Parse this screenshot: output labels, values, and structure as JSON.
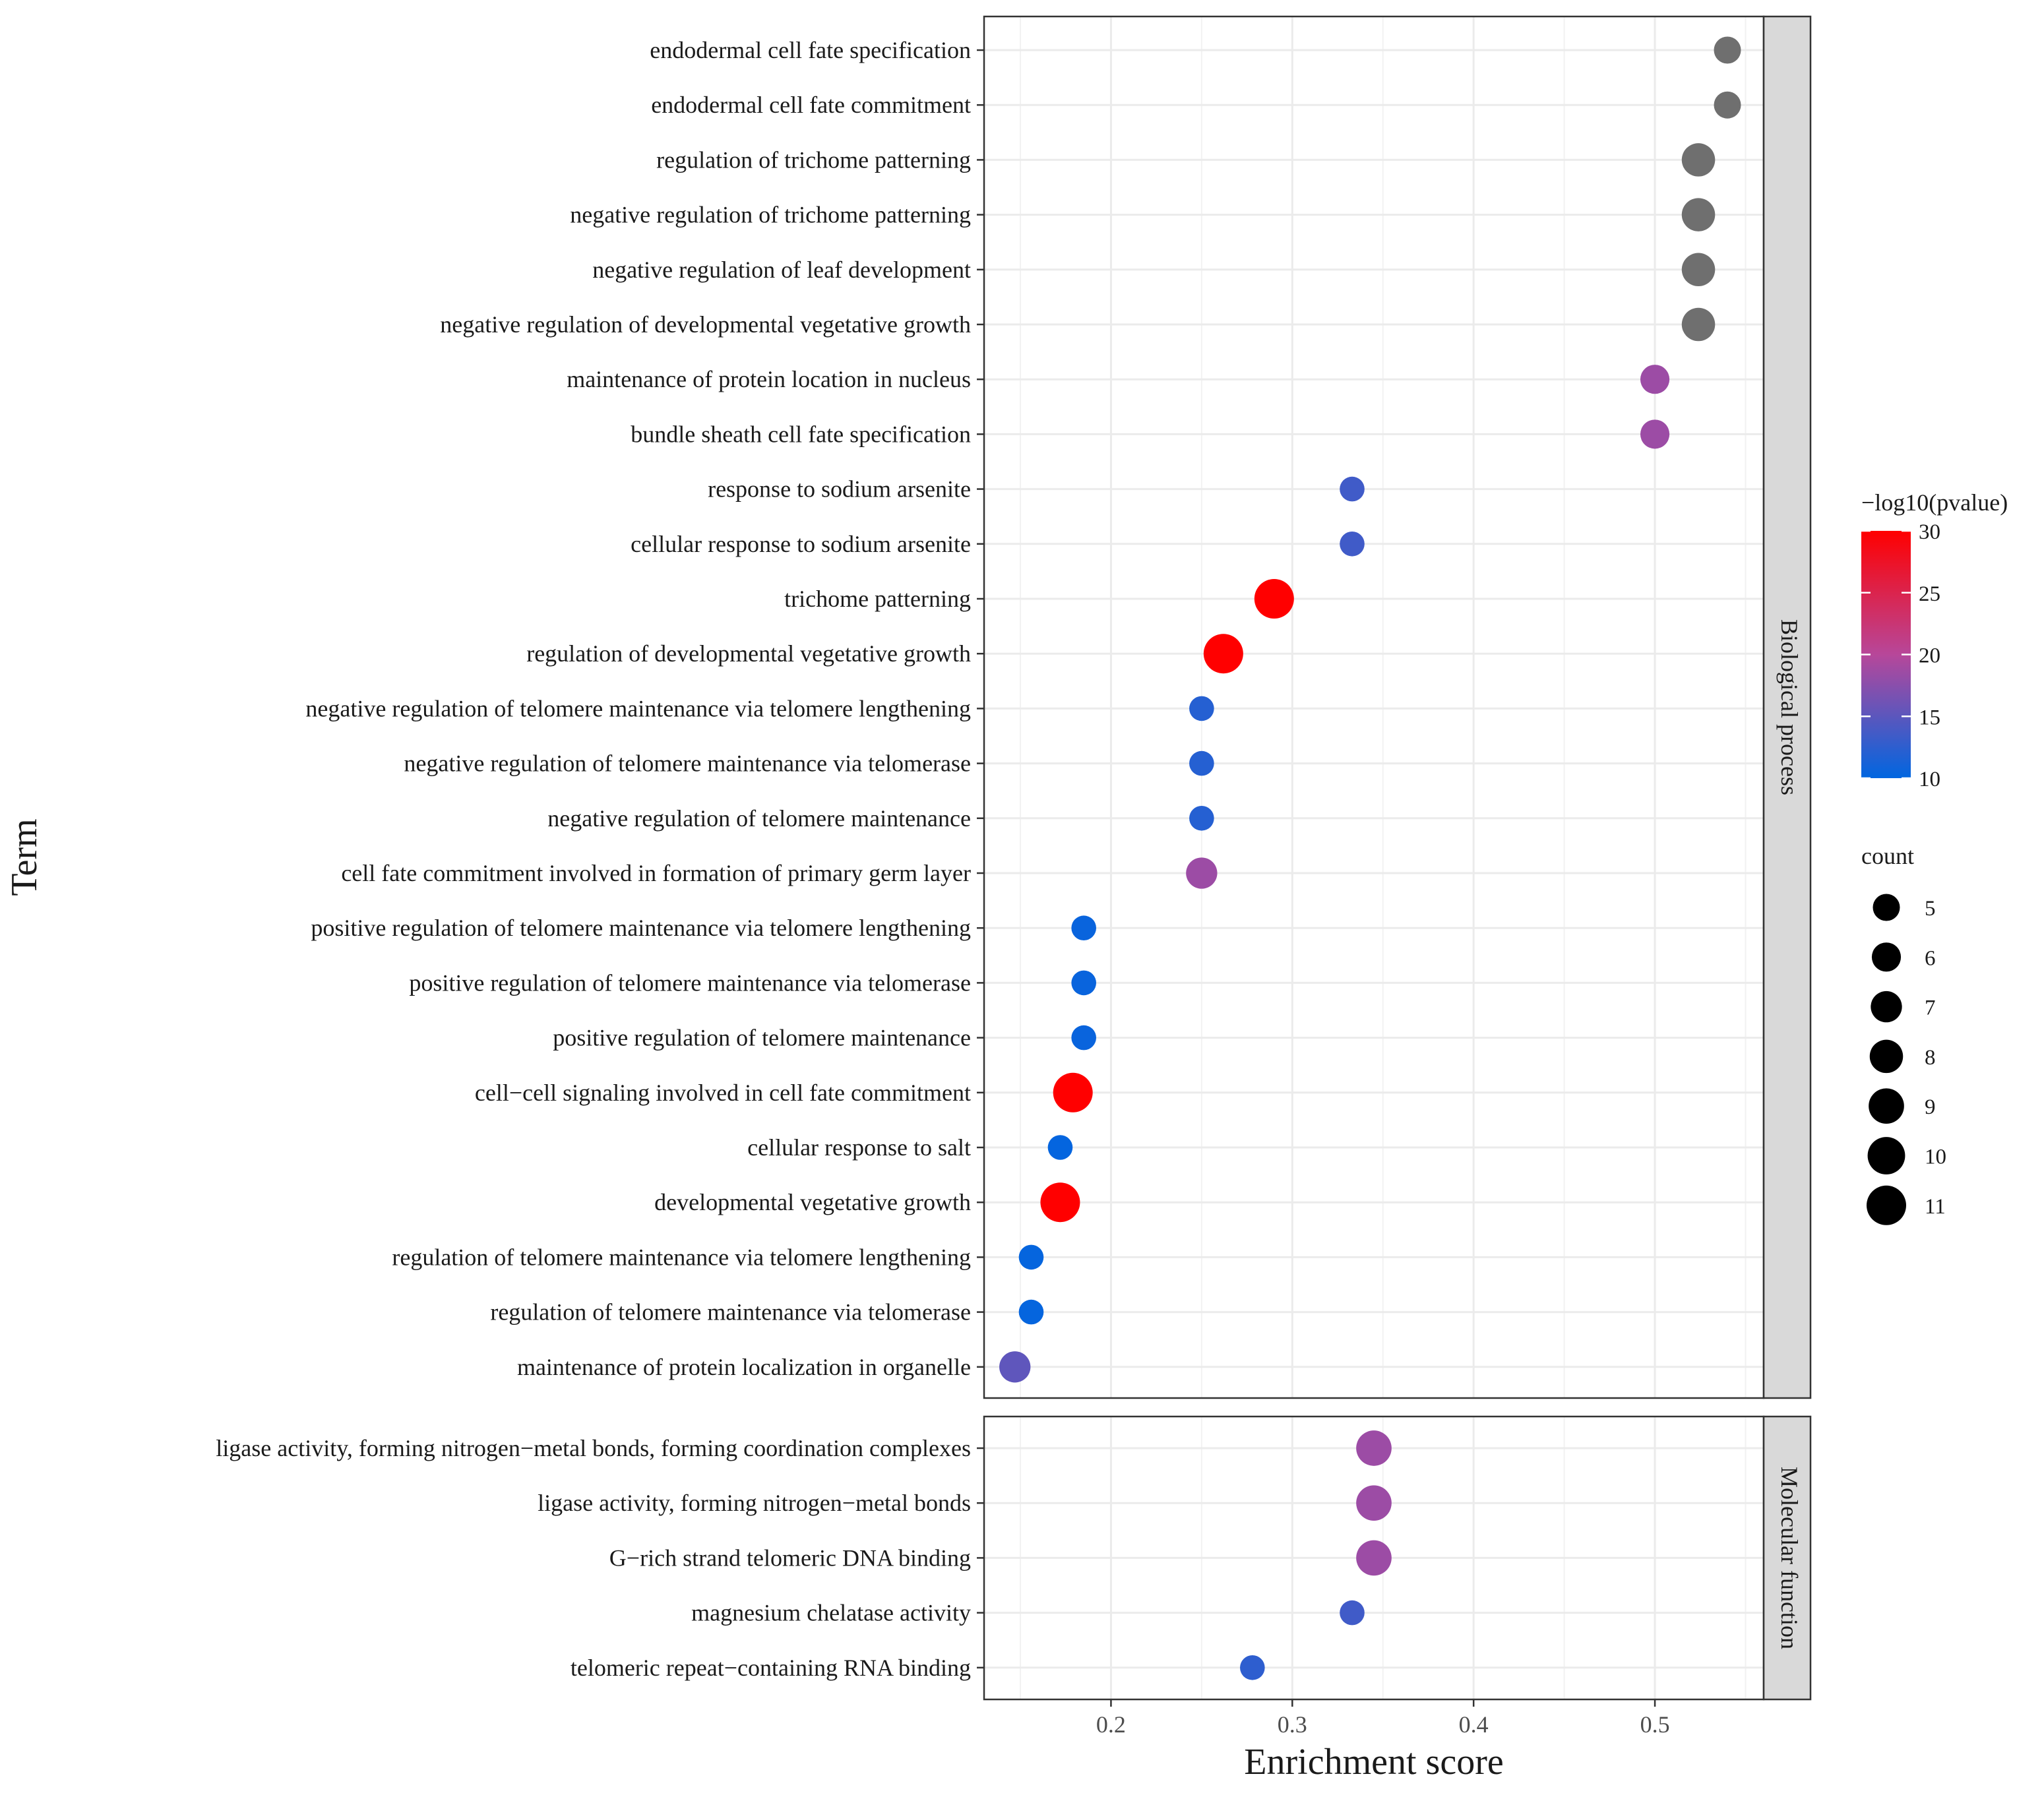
{
  "chart_data": {
    "type": "scatter",
    "xlabel": "Enrichment score",
    "ylabel": "Term",
    "xlim": [
      0.13,
      0.56
    ],
    "xticks": [
      0.2,
      0.3,
      0.4,
      0.5
    ],
    "xtick_labels": [
      "0.2",
      "0.3",
      "0.4",
      "0.5"
    ],
    "grid": true,
    "color_scale": {
      "title": "−log10(pvalue)",
      "min": 10,
      "max": 30,
      "ticks": [
        10,
        15,
        20,
        25,
        30
      ],
      "tick_labels": [
        "10",
        "15",
        "20",
        "25",
        "30"
      ],
      "low_color": "#0066e0",
      "mid_color": "#b7479a",
      "high_color": "#ff0000",
      "na_color": "#6f6f6f"
    },
    "size_scale": {
      "title": "count",
      "values": [
        5,
        6,
        7,
        8,
        9,
        10,
        11
      ],
      "labels": [
        "5",
        "6",
        "7",
        "8",
        "9",
        "10",
        "11"
      ]
    },
    "legend_position": "right",
    "facets": [
      {
        "label": "Biological process",
        "points": [
          {
            "term": "endodermal cell fate specification",
            "x": 0.54,
            "count": 5,
            "neglog10p": null
          },
          {
            "term": "endodermal cell fate commitment",
            "x": 0.54,
            "count": 5,
            "neglog10p": null
          },
          {
            "term": "regulation of trichome patterning",
            "x": 0.524,
            "count": 8,
            "neglog10p": null
          },
          {
            "term": "negative regulation of trichome patterning",
            "x": 0.524,
            "count": 8,
            "neglog10p": null
          },
          {
            "term": "negative regulation of leaf development",
            "x": 0.524,
            "count": 8,
            "neglog10p": null
          },
          {
            "term": "negative regulation of developmental vegetative growth",
            "x": 0.524,
            "count": 8,
            "neglog10p": null
          },
          {
            "term": "maintenance of protein location in nucleus",
            "x": 0.5,
            "count": 6,
            "neglog10p": 18.5
          },
          {
            "term": "bundle sheath cell fate specification",
            "x": 0.5,
            "count": 6,
            "neglog10p": 18.5
          },
          {
            "term": "response to sodium arsenite",
            "x": 0.333,
            "count": 4,
            "neglog10p": 13.5
          },
          {
            "term": "cellular response to sodium arsenite",
            "x": 0.333,
            "count": 4,
            "neglog10p": 13.5
          },
          {
            "term": "trichome patterning",
            "x": 0.29,
            "count": 11,
            "neglog10p": 30
          },
          {
            "term": "regulation of developmental vegetative growth",
            "x": 0.262,
            "count": 11,
            "neglog10p": 30
          },
          {
            "term": "negative regulation of telomere maintenance via telomere lengthening",
            "x": 0.25,
            "count": 4,
            "neglog10p": 12
          },
          {
            "term": "negative regulation of telomere maintenance via telomerase",
            "x": 0.25,
            "count": 4,
            "neglog10p": 12
          },
          {
            "term": "negative regulation of telomere maintenance",
            "x": 0.25,
            "count": 4,
            "neglog10p": 12
          },
          {
            "term": "cell fate commitment involved in formation of primary germ layer",
            "x": 0.25,
            "count": 7,
            "neglog10p": 18.5
          },
          {
            "term": "positive regulation of telomere maintenance via telomere lengthening",
            "x": 0.185,
            "count": 4,
            "neglog10p": 10.5
          },
          {
            "term": "positive regulation of telomere maintenance via telomerase",
            "x": 0.185,
            "count": 4,
            "neglog10p": 10.5
          },
          {
            "term": "positive regulation of telomere maintenance",
            "x": 0.185,
            "count": 4,
            "neglog10p": 10.5
          },
          {
            "term": "cell−cell signaling involved in cell fate commitment",
            "x": 0.179,
            "count": 11,
            "neglog10p": 30
          },
          {
            "term": "cellular response to salt",
            "x": 0.172,
            "count": 4,
            "neglog10p": 10.2
          },
          {
            "term": "developmental vegetative growth",
            "x": 0.172,
            "count": 11,
            "neglog10p": 30
          },
          {
            "term": "regulation of telomere maintenance via telomere lengthening",
            "x": 0.156,
            "count": 4,
            "neglog10p": 10.3
          },
          {
            "term": "regulation of telomere maintenance via telomerase",
            "x": 0.156,
            "count": 4,
            "neglog10p": 10.3
          },
          {
            "term": "maintenance of protein localization in organelle",
            "x": 0.147,
            "count": 7,
            "neglog10p": 15.2
          }
        ]
      },
      {
        "label": "Molecular function",
        "points": [
          {
            "term": "ligase activity, forming nitrogen−metal bonds, forming coordination complexes",
            "x": 0.345,
            "count": 9,
            "neglog10p": 18.5
          },
          {
            "term": "ligase activity, forming nitrogen−metal bonds",
            "x": 0.345,
            "count": 9,
            "neglog10p": 18.5
          },
          {
            "term": "G−rich strand telomeric DNA binding",
            "x": 0.345,
            "count": 9,
            "neglog10p": 18.5
          },
          {
            "term": "magnesium chelatase activity",
            "x": 0.333,
            "count": 4,
            "neglog10p": 13.5
          },
          {
            "term": "telomeric repeat−containing RNA binding",
            "x": 0.278,
            "count": 4,
            "neglog10p": 12.5
          }
        ]
      }
    ]
  }
}
